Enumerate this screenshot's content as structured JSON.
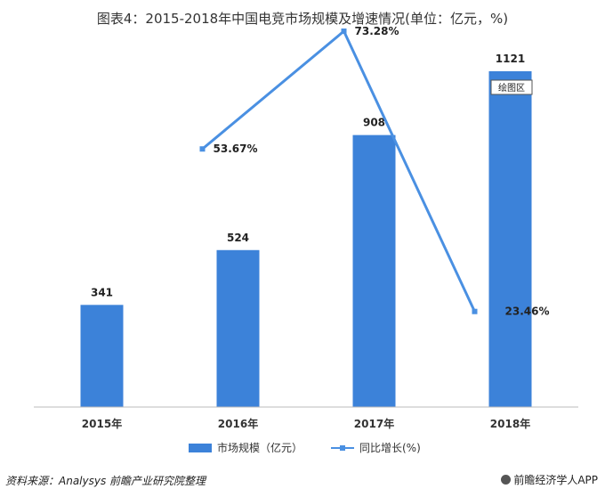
{
  "title": "图表4：2015-2018年中国电竞市场规模及增速情况(单位：亿元，%)",
  "chart_data": {
    "type": "bar",
    "categories": [
      "2015年",
      "2016年",
      "2017年",
      "2018年"
    ],
    "series": [
      {
        "name": "市场规模（亿元）",
        "type": "bar",
        "values": [
          341,
          524,
          908,
          1121
        ],
        "color": "#3c82d9"
      },
      {
        "name": "同比增长(%)",
        "type": "line",
        "values": [
          null,
          53.67,
          73.28,
          23.46
        ],
        "labels": [
          "",
          "53.67%",
          "73.28%",
          "23.46%"
        ],
        "color": "#4a90e2"
      }
    ],
    "bar_label_values": [
      "341",
      "524",
      "908",
      "1121"
    ],
    "bar_ylim": [
      0,
      1121
    ],
    "line_ylim": [
      0,
      80
    ],
    "legend_position": "bottom",
    "grid": false
  },
  "tooltip": "绘图区",
  "source": "资料来源：Analysys 前瞻产业研究院整理",
  "brand": "前瞻经济学人APP"
}
